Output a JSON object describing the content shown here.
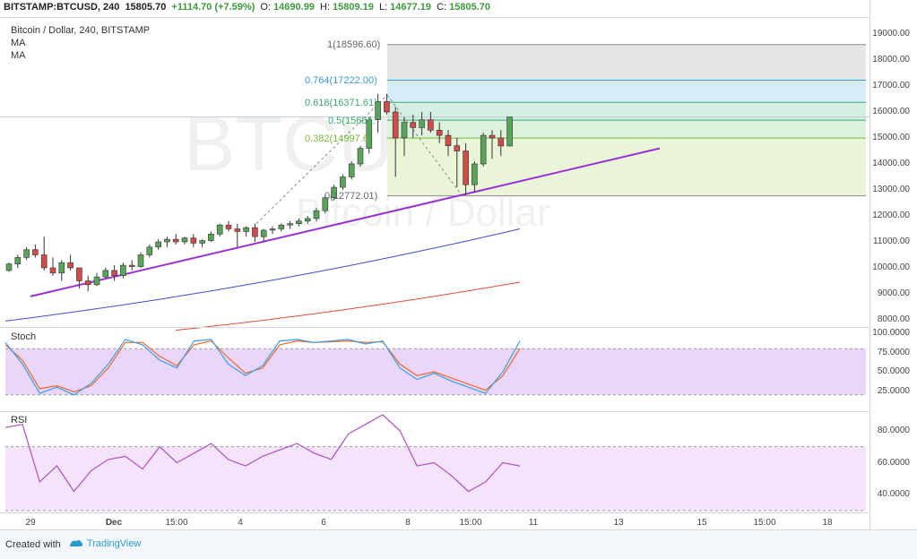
{
  "header": {
    "symbol": "BITSTAMP:BTCUSD, 240",
    "last": "15805.70",
    "change": "+1114.70 (+7.59%)",
    "o_label": "O:",
    "o_value": "14690.99",
    "h_label": "H:",
    "h_value": "15809.19",
    "l_label": "L:",
    "l_value": "14677.19",
    "c_label": "C:",
    "c_value": "15805.70"
  },
  "legend": {
    "title": "Bitcoin / Dollar, 240, BITSTAMP",
    "ma1": "MA",
    "ma2": "MA"
  },
  "watermark": {
    "symbol": "BTCUSD, 240",
    "name": "Bitcoin / Dollar"
  },
  "fib": {
    "l1": "1(18596.60)",
    "l0764": "0.764(17222.00)",
    "l0618": "0.618(16371.61)",
    "l05": "0.5(15684.",
    "l0382": "0.382(14997.6",
    "l0": "0(12772.01)"
  },
  "price_axis": [
    "19000.00",
    "18000.00",
    "17000.00",
    "16000.00",
    "15000.00",
    "14000.00",
    "13000.00",
    "12000.00",
    "11000.00",
    "10000.00",
    "9000.00",
    "8000.00"
  ],
  "stoch": {
    "label": "Stoch",
    "axis": [
      "100.0000",
      "75.0000",
      "50.0000",
      "25.0000"
    ]
  },
  "rsi": {
    "label": "RSI",
    "axis": [
      "80.0000",
      "60.0000",
      "40.0000"
    ]
  },
  "time_axis": [
    "29",
    "Dec",
    "15:00",
    "4",
    "6",
    "8",
    "15:00",
    "11",
    "13",
    "15",
    "15:00",
    "18"
  ],
  "footer": {
    "created": "Created with",
    "brand": "TradingView"
  },
  "colors": {
    "up": "#5aa35a",
    "down": "#d24b4b",
    "trendline": "#9b30d9",
    "ma_blue": "#3a4fd9",
    "ma_red": "#e84a3a",
    "stoch_k": "#3ba0e8",
    "stoch_d": "#f0662a",
    "rsi": "#b04fc0"
  },
  "chart_data": {
    "type": "candlestick",
    "candles_ohlc": [
      [
        9900,
        10200,
        9850,
        10150
      ],
      [
        10150,
        10500,
        10000,
        10400
      ],
      [
        10400,
        10800,
        10300,
        10700
      ],
      [
        10700,
        10900,
        10400,
        10500
      ],
      [
        10500,
        11200,
        9900,
        10000
      ],
      [
        10000,
        10400,
        9700,
        9800
      ],
      [
        9800,
        10300,
        9500,
        10200
      ],
      [
        10200,
        10500,
        9900,
        10000
      ],
      [
        10000,
        10000,
        9200,
        9500
      ],
      [
        9500,
        9700,
        9100,
        9350
      ],
      [
        9350,
        9800,
        9300,
        9650
      ],
      [
        9650,
        10000,
        9600,
        9900
      ],
      [
        9900,
        10100,
        9500,
        9700
      ],
      [
        9700,
        10200,
        9600,
        10100
      ],
      [
        10100,
        10300,
        9900,
        10050
      ],
      [
        10050,
        10600,
        10000,
        10500
      ],
      [
        10500,
        10900,
        10400,
        10800
      ],
      [
        10800,
        11100,
        10700,
        11000
      ],
      [
        11000,
        11200,
        10800,
        11100
      ],
      [
        11100,
        11300,
        10900,
        11000
      ],
      [
        11000,
        11200,
        10900,
        11150
      ],
      [
        11150,
        11300,
        10800,
        10950
      ],
      [
        10950,
        11100,
        10800,
        11050
      ],
      [
        11050,
        11400,
        11000,
        11300
      ],
      [
        11300,
        11700,
        11200,
        11650
      ],
      [
        11650,
        11800,
        11400,
        11500
      ],
      [
        11500,
        11700,
        10800,
        11400
      ],
      [
        11400,
        11600,
        11200,
        11550
      ],
      [
        11550,
        11700,
        11000,
        11200
      ],
      [
        11200,
        11500,
        11000,
        11450
      ],
      [
        11450,
        11600,
        11300,
        11500
      ],
      [
        11500,
        11700,
        11400,
        11650
      ],
      [
        11650,
        11800,
        11500,
        11700
      ],
      [
        11700,
        11900,
        11600,
        11800
      ],
      [
        11800,
        12000,
        11700,
        11900
      ],
      [
        11900,
        12300,
        11800,
        12200
      ],
      [
        12200,
        12800,
        12100,
        12700
      ],
      [
        12700,
        13200,
        12600,
        13100
      ],
      [
        13100,
        13600,
        13000,
        13500
      ],
      [
        13500,
        14100,
        13400,
        14000
      ],
      [
        14000,
        14700,
        13900,
        14600
      ],
      [
        14600,
        15800,
        14400,
        15700
      ],
      [
        15700,
        16700,
        15200,
        16400
      ],
      [
        16400,
        16700,
        15900,
        16000
      ],
      [
        16000,
        16200,
        13500,
        15000
      ],
      [
        15000,
        15800,
        14300,
        15600
      ],
      [
        15600,
        15900,
        15000,
        15400
      ],
      [
        15400,
        16000,
        15100,
        15700
      ],
      [
        15700,
        16000,
        15200,
        15300
      ],
      [
        15300,
        15600,
        14800,
        15100
      ],
      [
        15100,
        15300,
        14300,
        14700
      ],
      [
        14700,
        15000,
        13100,
        14500
      ],
      [
        14500,
        14800,
        12800,
        13200
      ],
      [
        13200,
        14100,
        12900,
        14000
      ],
      [
        14000,
        15200,
        13900,
        15100
      ],
      [
        15100,
        15300,
        14200,
        15000
      ],
      [
        15000,
        15300,
        14300,
        14691
      ],
      [
        14691,
        15809,
        14677,
        15806
      ]
    ],
    "ma_blue_endpoints": [
      7950,
      11500
    ],
    "ma_red_endpoints": [
      7600,
      9450
    ],
    "trendline_price": [
      8900,
      14600
    ],
    "fib_levels": {
      "1": 18596.6,
      "0.764": 17222.0,
      "0.618": 16371.61,
      "0.5": 15684.3,
      "0.382": 14997.6,
      "0": 12772.01
    },
    "stoch_k": [
      88,
      60,
      22,
      30,
      20,
      35,
      60,
      92,
      85,
      65,
      55,
      90,
      92,
      60,
      45,
      58,
      90,
      92,
      88,
      90,
      92,
      86,
      90,
      55,
      40,
      48,
      38,
      30,
      22,
      50,
      90
    ],
    "stoch_d": [
      85,
      65,
      28,
      32,
      24,
      32,
      55,
      88,
      88,
      70,
      58,
      85,
      90,
      68,
      48,
      55,
      85,
      90,
      88,
      89,
      90,
      88,
      89,
      60,
      45,
      50,
      42,
      34,
      26,
      45,
      80
    ],
    "rsi": [
      82,
      84,
      48,
      58,
      42,
      55,
      62,
      64,
      56,
      70,
      60,
      66,
      72,
      62,
      58,
      64,
      68,
      72,
      66,
      62,
      78,
      84,
      90,
      80,
      58,
      60,
      52,
      42,
      48,
      60,
      58
    ],
    "price_ylim": [
      8000,
      19000
    ],
    "stoch_ylim": [
      0,
      100
    ],
    "rsi_ylim": [
      30,
      90
    ]
  }
}
